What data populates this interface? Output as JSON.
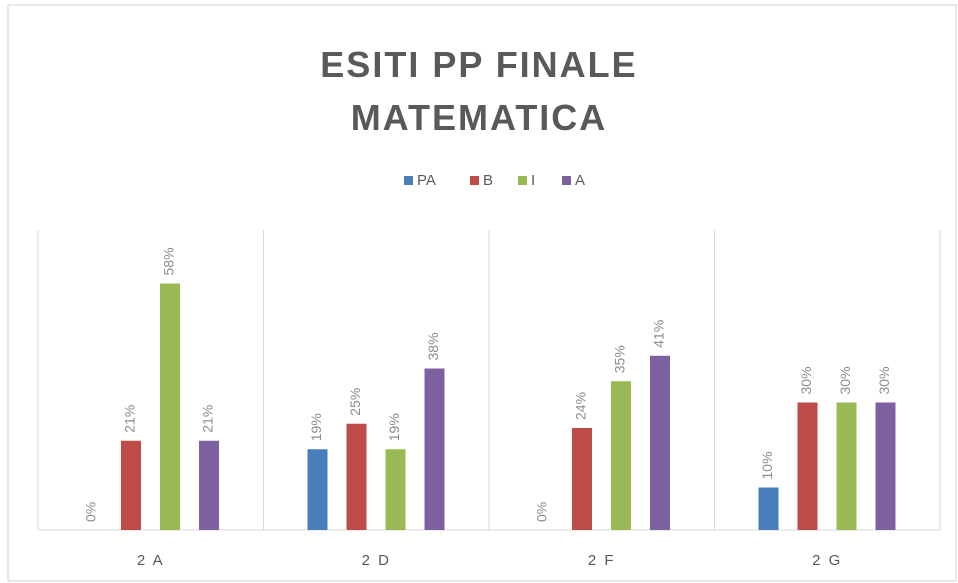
{
  "chart_data": {
    "type": "bar",
    "title": "ESITI PP FINALE MATEMATICA",
    "categories": [
      "2 A",
      "2 D",
      "2 F",
      "2 G"
    ],
    "series": [
      {
        "name": "PA",
        "color": "#4a7ebb",
        "values": [
          0,
          19,
          0,
          10
        ],
        "value_labels": [
          "0%",
          "19%",
          "0%",
          "10%"
        ]
      },
      {
        "name": "B",
        "color": "#be4b48",
        "values": [
          21,
          25,
          24,
          30
        ],
        "value_labels": [
          "21%",
          "25%",
          "24%",
          "30%"
        ]
      },
      {
        "name": "I",
        "color": "#98b954",
        "values": [
          58,
          19,
          35,
          30
        ],
        "value_labels": [
          "58%",
          "19%",
          "35%",
          "30%"
        ]
      },
      {
        "name": "A",
        "color": "#7d60a0",
        "values": [
          21,
          38,
          41,
          30
        ],
        "value_labels": [
          "21%",
          "38%",
          "41%",
          "30%"
        ]
      }
    ],
    "legend": "top"
  }
}
